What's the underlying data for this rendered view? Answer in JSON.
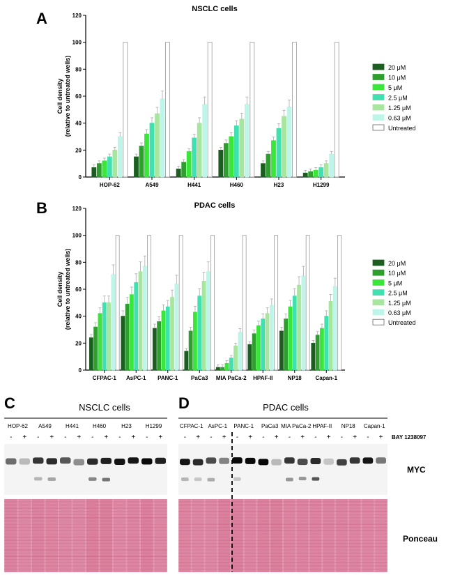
{
  "panel_letters": {
    "a": "A",
    "b": "B",
    "c": "C",
    "d": "D"
  },
  "legend": {
    "labels": [
      "20 μM",
      "10 μM",
      "5 μM",
      "2.5 μM",
      "1.25 μM",
      "0.63 μM",
      "Untreated"
    ],
    "colors": [
      "#1b5e20",
      "#2e9e2e",
      "#39e639",
      "#40e0b0",
      "#a8e6a0",
      "#bff5e8",
      "#ffffff"
    ]
  },
  "chart_data": [
    {
      "type": "bar",
      "title": "NSCLC cells",
      "ylabel_line1": "Cell density",
      "ylabel_line2": "(relative to untreated wells)",
      "xlabel": "",
      "ylim": [
        0,
        120
      ],
      "yticks": [
        "0",
        "20",
        "40",
        "60",
        "80",
        "100",
        "120"
      ],
      "categories": [
        "HOP-62",
        "A549",
        "H441",
        "H460",
        "H23",
        "H1299"
      ],
      "series": [
        {
          "name": "20 μM",
          "values": [
            7,
            15,
            6,
            20,
            10,
            3
          ]
        },
        {
          "name": "10 μM",
          "values": [
            10,
            23,
            11,
            25,
            17,
            4
          ]
        },
        {
          "name": "5 μM",
          "values": [
            12,
            32,
            19,
            30,
            27,
            5
          ]
        },
        {
          "name": "2.5 μM",
          "values": [
            15,
            40,
            29,
            38,
            36,
            7
          ]
        },
        {
          "name": "1.25 μM",
          "values": [
            20,
            47,
            40,
            43,
            45,
            10
          ]
        },
        {
          "name": "0.63 μM",
          "values": [
            30,
            58,
            54,
            54,
            52,
            17
          ]
        },
        {
          "name": "Untreated",
          "values": [
            100,
            100,
            100,
            100,
            100,
            100
          ]
        }
      ]
    },
    {
      "type": "bar",
      "title": "PDAC cells",
      "ylabel_line1": "Cell density",
      "ylabel_line2": "(relative to untreated wells)",
      "xlabel": "",
      "ylim": [
        0,
        120
      ],
      "yticks": [
        "0",
        "20",
        "40",
        "60",
        "80",
        "100",
        "120"
      ],
      "categories": [
        "CFPAC-1",
        "AsPC-1",
        "PANC-1",
        "PaCa3",
        "MIA PaCa-2",
        "HPAF-II",
        "NP18",
        "Capan-1"
      ],
      "series": [
        {
          "name": "20 μM",
          "values": [
            24,
            40,
            31,
            14,
            2,
            19,
            29,
            20
          ]
        },
        {
          "name": "10 μM",
          "values": [
            32,
            49,
            36,
            29,
            2,
            27,
            38,
            26
          ]
        },
        {
          "name": "5 μM",
          "values": [
            42,
            56,
            44,
            43,
            5,
            33,
            47,
            31
          ]
        },
        {
          "name": "2.5 μM",
          "values": [
            50,
            65,
            47,
            55,
            9,
            38,
            55,
            40
          ]
        },
        {
          "name": "1.25 μM",
          "values": [
            50,
            73,
            54,
            66,
            18,
            42,
            63,
            51
          ]
        },
        {
          "name": "0.63 μM",
          "values": [
            71,
            77,
            64,
            73,
            28,
            48,
            70,
            62
          ]
        },
        {
          "name": "Untreated",
          "values": [
            100,
            100,
            100,
            100,
            100,
            100,
            100,
            100
          ]
        }
      ]
    }
  ],
  "blot_c": {
    "title": "NSCLC cells",
    "cell_lines": [
      "HOP-62",
      "A549",
      "H441",
      "H460",
      "H23",
      "H1299"
    ]
  },
  "blot_d": {
    "title": "PDAC cells",
    "cell_lines": [
      "CFPAC-1",
      "AsPC-1",
      "PANC-1",
      "PaCa3",
      "MIA PaCa-2",
      "HPAF-II",
      "NP18",
      "Capan-1"
    ],
    "treatment_label": "BAY 1238097"
  },
  "treatment_signs": {
    "minus": "-",
    "plus": "+"
  },
  "row_labels": {
    "myc": "MYC",
    "ponceau": "Ponceau"
  }
}
